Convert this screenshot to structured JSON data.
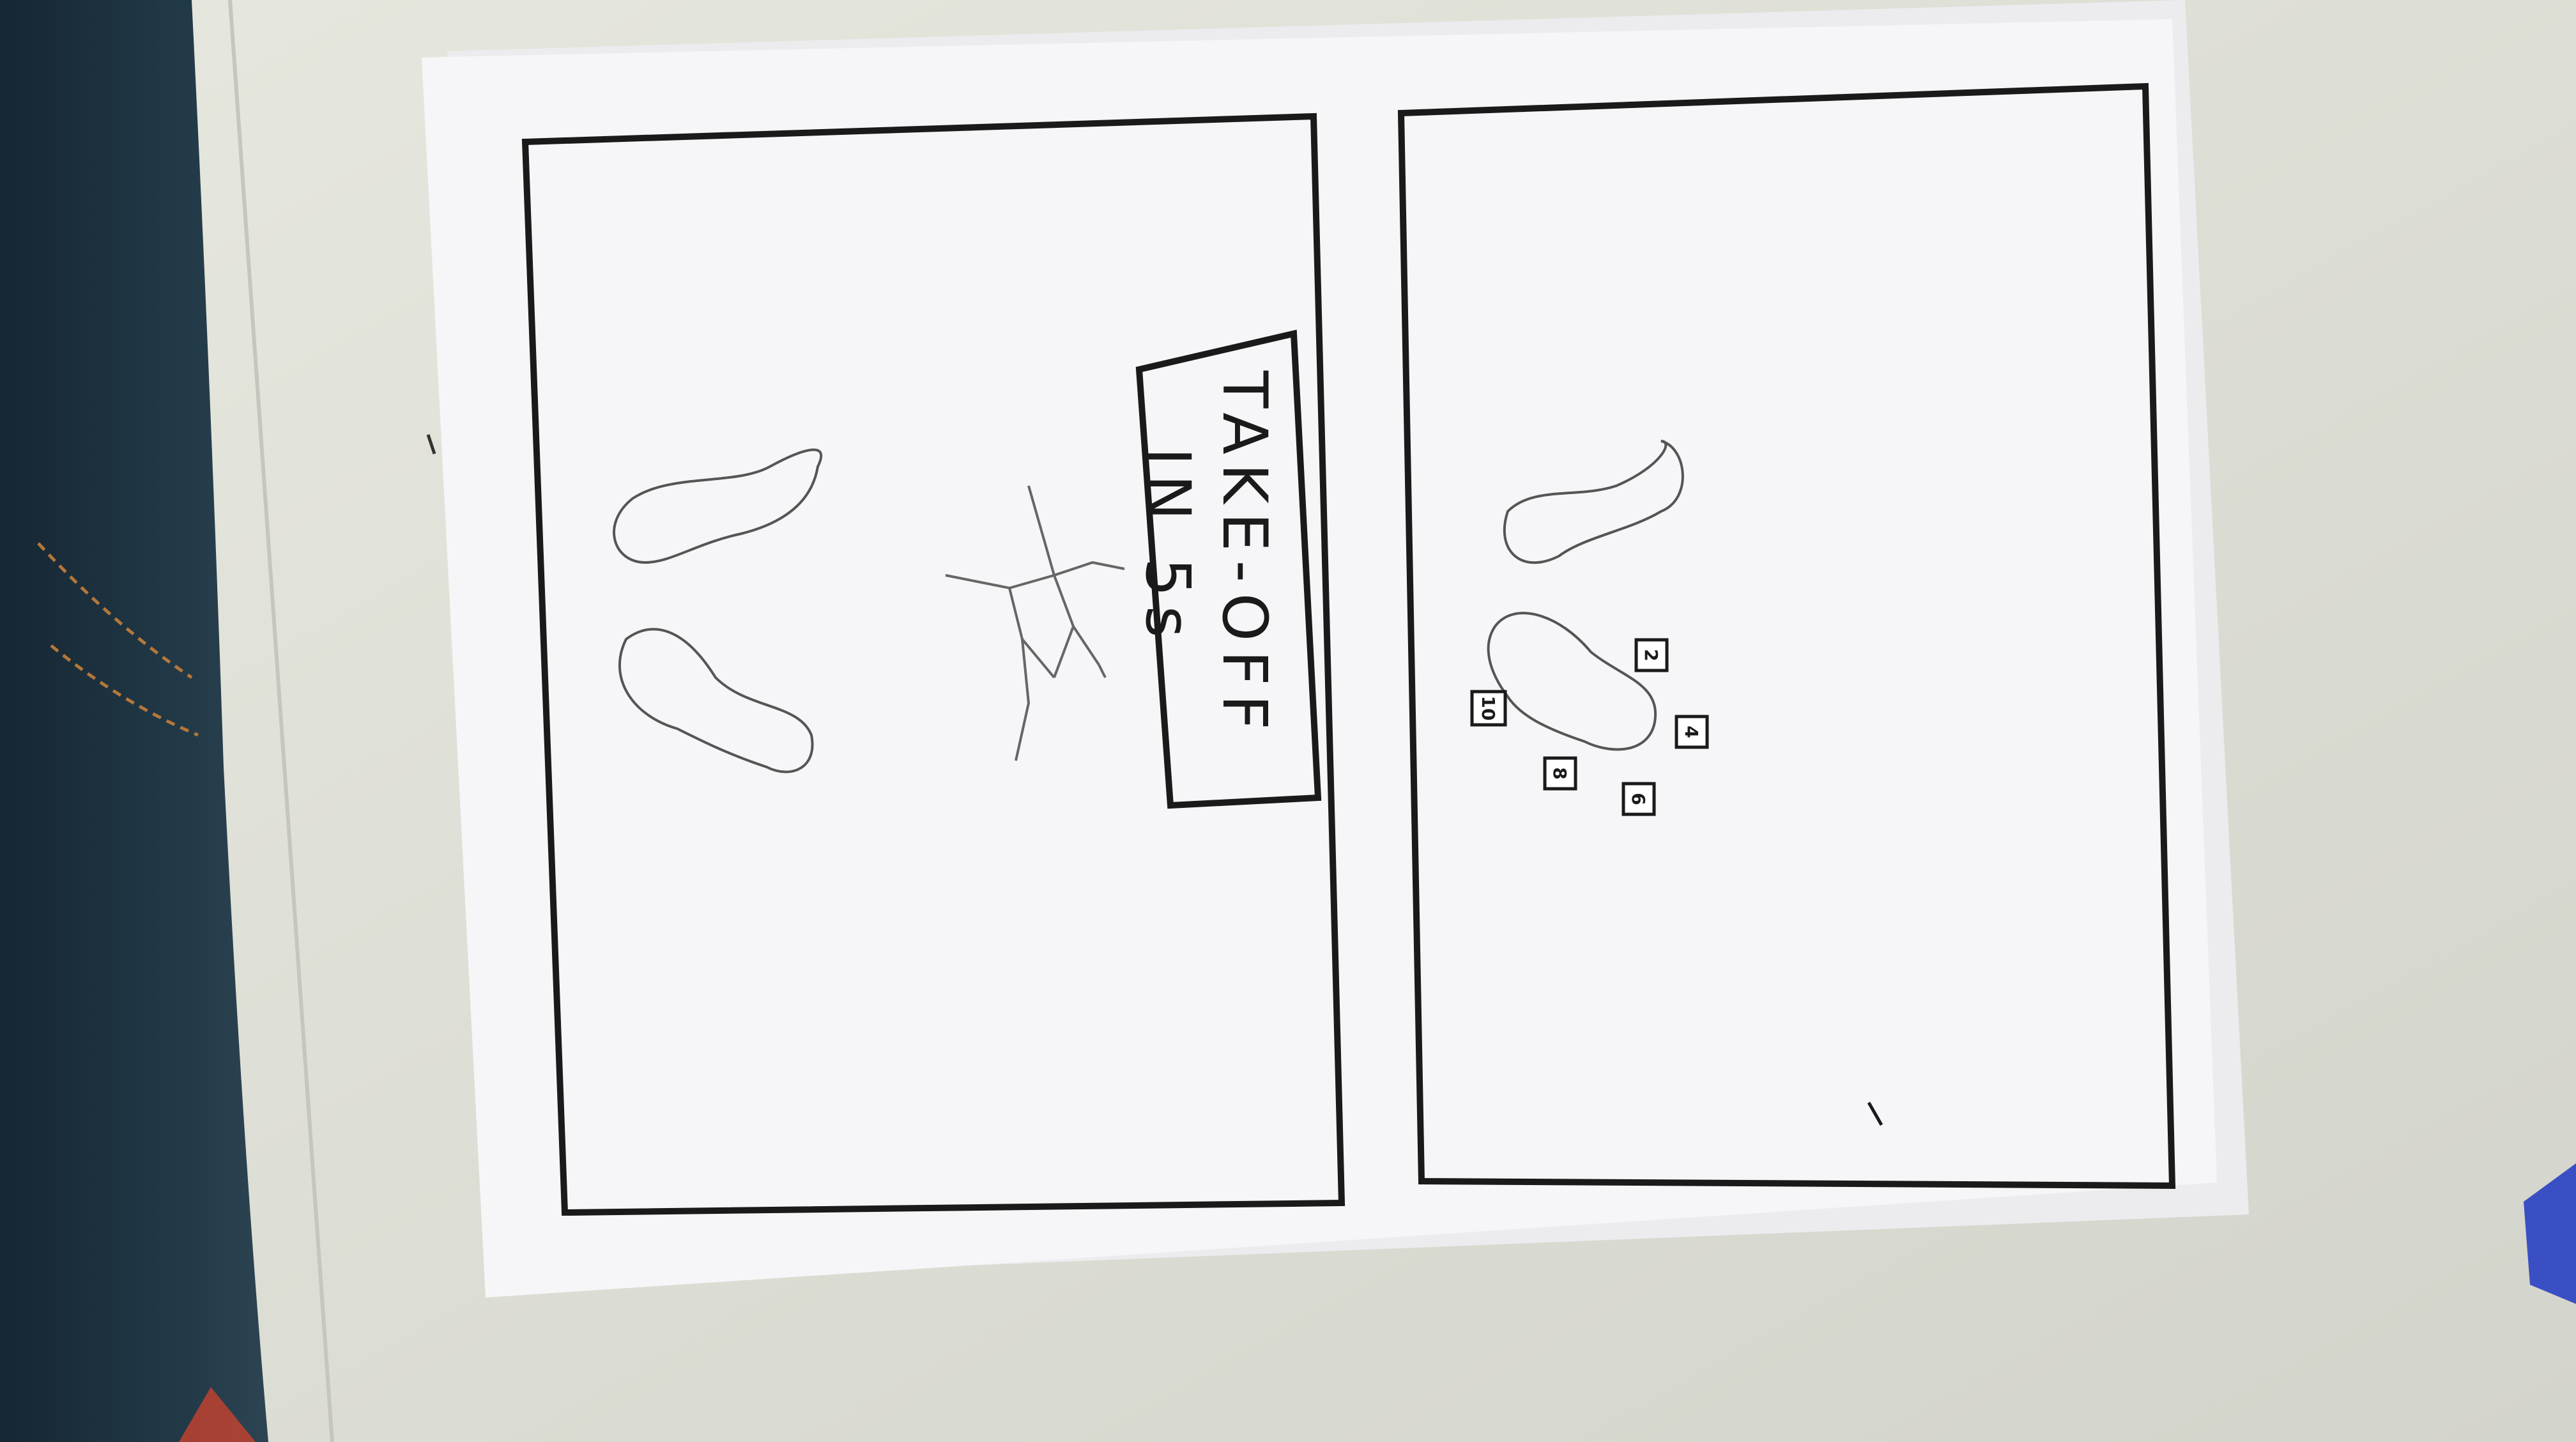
{
  "sign": {
    "line1": "TAKE-OFF",
    "line2": "IN 5s"
  },
  "markers": [
    "2",
    "4",
    "6",
    "8",
    "10"
  ],
  "colors": {
    "table": "#e3e4dc",
    "jeans": "#1f3340",
    "paper": "#f6f6f8",
    "ink": "#1a1a1a",
    "pencil": "#555555"
  }
}
